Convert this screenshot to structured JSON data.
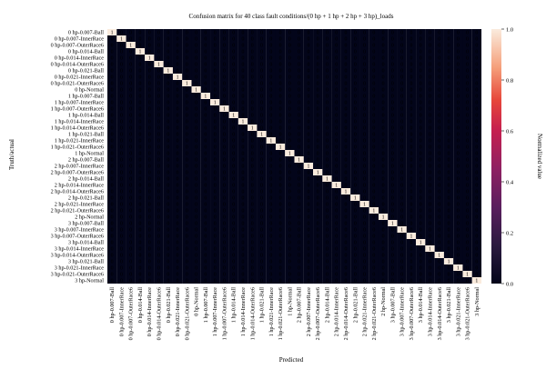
{
  "chart_data": {
    "type": "heatmap",
    "title": "Confusion matrix for 40 class fault conditions/(0 hp + 1 hp + 2 hp + 3 hp)_loads",
    "xlabel": "Predicted",
    "ylabel": "Truth/actual",
    "labels": [
      "0 hp-0.007-Ball",
      "0 hp-0.007-InnerRace",
      "0 hp-0.007-OuterRace6",
      "0 hp-0.014-Ball",
      "0 hp-0.014-InnerRace",
      "0 hp-0.014-OuterRace6",
      "0 hp-0.021-Ball",
      "0 hp-0.021-InnerRace",
      "0 hp-0.021-OuterRace6",
      "0 hp-Normal",
      "1 hp-0.007-Ball",
      "1 hp-0.007-InnerRace",
      "1 hp-0.007-OuterRace6",
      "1 hp-0.014-Ball",
      "1 hp-0.014-InnerRace",
      "1 hp-0.014-OuterRace6",
      "1 hp-0.021-Ball",
      "1 hp-0.021-InnerRace",
      "1 hp-0.021-OuterRace6",
      "1 hp-Normal",
      "2 hp-0.007-Ball",
      "2 hp-0.007-InnerRace",
      "2 hp-0.007-OuterRace6",
      "2 hp-0.014-Ball",
      "2 hp-0.014-InnerRace",
      "2 hp-0.014-OuterRace6",
      "2 hp-0.021-Ball",
      "2 hp-0.021-InnerRace",
      "2 hp-0.021-OuterRace6",
      "2 hp-Normal",
      "3 hp-0.007-Ball",
      "3 hp-0.007-InnerRace",
      "3 hp-0.007-OuterRace6",
      "3 hp-0.014-Ball",
      "3 hp-0.014-InnerRace",
      "3 hp-0.014-OuterRace6",
      "3 hp-0.021-Ball",
      "3 hp-0.021-InnerRace",
      "3 hp-0.021-OuterRace6",
      "3 hp-Normal"
    ],
    "matrix": "identity",
    "diagonal_value": 1,
    "off_diagonal_value": 0,
    "colorbar": {
      "label": "Normalized value",
      "range": [
        0.0,
        1.0
      ],
      "ticks": [
        "0.0",
        "0.2",
        "0.4",
        "0.6",
        "0.8",
        "1.0"
      ]
    },
    "colors": {
      "low": "#03051a",
      "high": "#faebdd"
    }
  }
}
